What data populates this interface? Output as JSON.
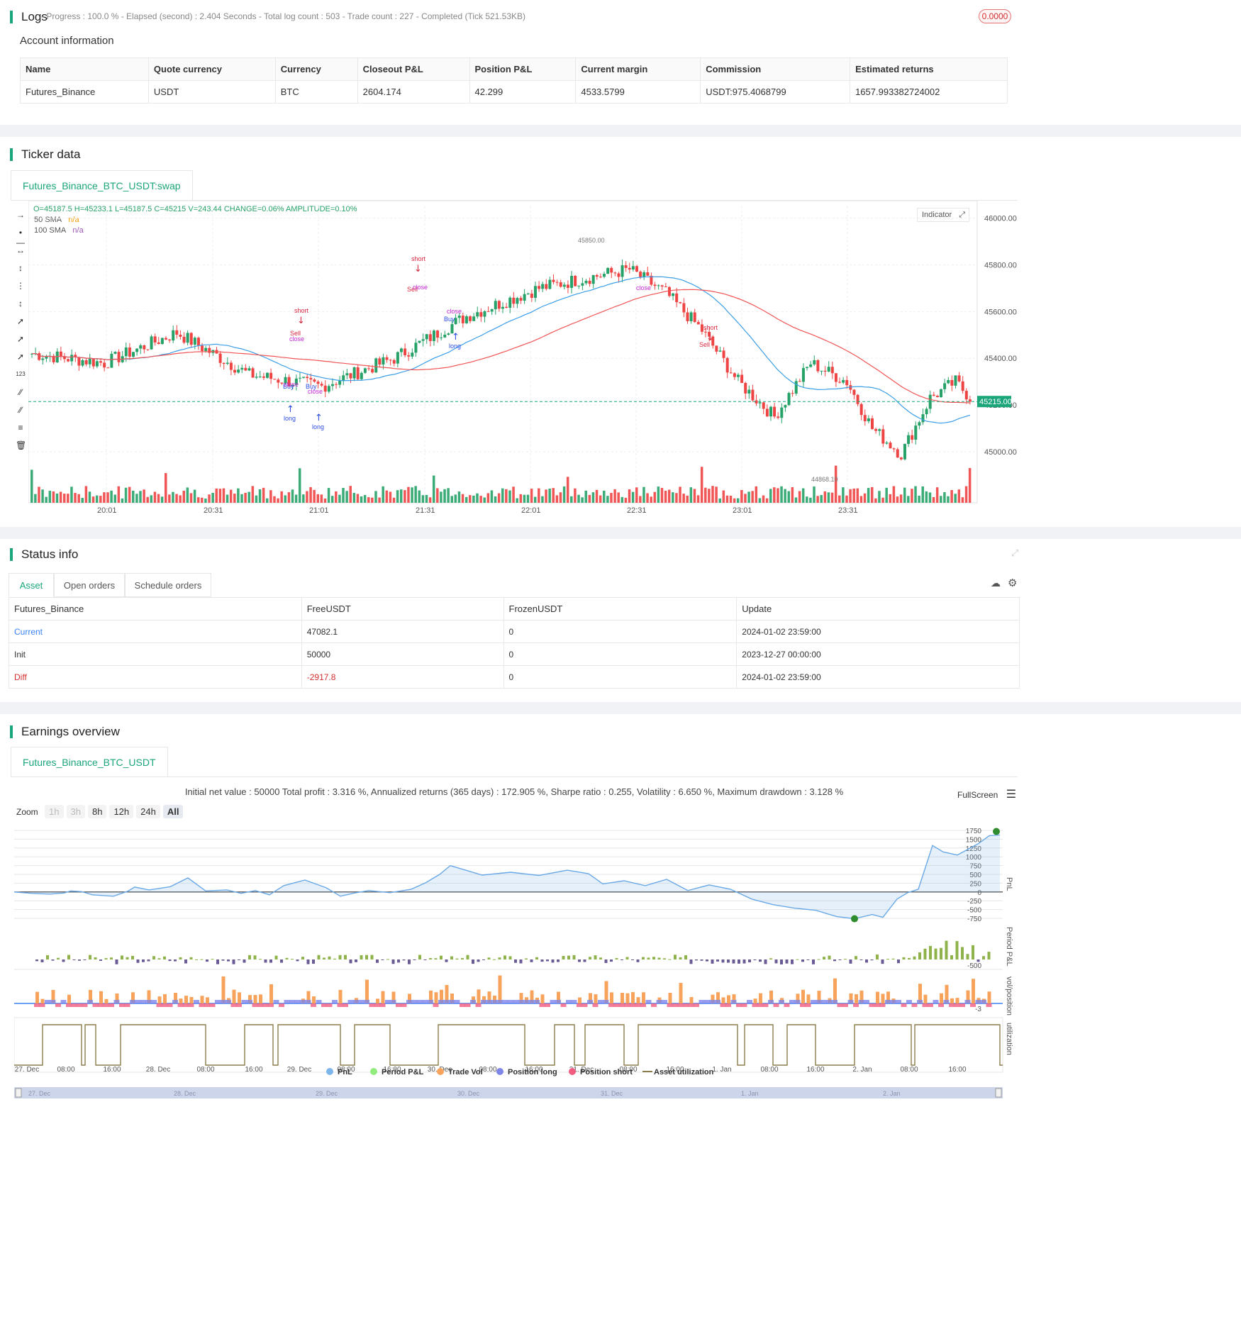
{
  "logs": {
    "title": "Logs",
    "progress_text": "- Progress : 100.0 % - Elapsed (second) : 2.404 Seconds - Total log count : 503 - Trade count : 227 - Completed (Tick 521.53KB)",
    "badge": "0.0000"
  },
  "account": {
    "title": "Account information",
    "headers": [
      "Name",
      "Quote currency",
      "Currency",
      "Closeout P&L",
      "Position P&L",
      "Current margin",
      "Commission",
      "Estimated returns"
    ],
    "row": [
      "Futures_Binance",
      "USDT",
      "BTC",
      "2604.174",
      "42.299",
      "4533.5799",
      "USDT:975.4068799",
      "1657.993382724002"
    ]
  },
  "ticker": {
    "title": "Ticker data",
    "tab": "Futures_Binance_BTC_USDT:swap",
    "ohlc_line": "O=45187.5 H=45233.1 L=45187.5 C=45215 V=243.44 CHANGE=0.06% AMPLITUDE=0.10%",
    "sma50_label": "50 SMA",
    "sma50_val": "n/a",
    "sma100_label": "100 SMA",
    "sma100_val": "n/a",
    "indicator_btn": "Indicator",
    "price_ticks": [
      "46000.00",
      "45800.00",
      "45600.00",
      "45400.00",
      "45200.00",
      "45000.00"
    ],
    "time_ticks": [
      "20:01",
      "20:31",
      "21:01",
      "21:31",
      "22:01",
      "22:31",
      "23:01",
      "23:31"
    ],
    "current_price": "45215.00",
    "high_label": "45850.00",
    "low_label": "44868.10",
    "colors": {
      "up": "#26a269",
      "down": "#ef4444",
      "sma50": "#3b9ee6",
      "sma100": "#f05454",
      "buy": "#2b4de0",
      "sell": "#d7263d",
      "close": "#c026d3"
    },
    "annotations": {
      "short": "short",
      "long": "long",
      "buy": "Buy",
      "sell": "Sell",
      "close": "close"
    }
  },
  "status": {
    "title": "Status info",
    "tabs": [
      "Asset",
      "Open orders",
      "Schedule orders"
    ],
    "headers": [
      "Futures_Binance",
      "FreeUSDT",
      "FrozenUSDT",
      "Update"
    ],
    "rows": [
      [
        "Current",
        "47082.1",
        "0",
        "2024-01-02 23:59:00"
      ],
      [
        "Init",
        "50000",
        "0",
        "2023-12-27 00:00:00"
      ],
      [
        "Diff",
        "-2917.8",
        "0",
        "2024-01-02 23:59:00"
      ]
    ]
  },
  "earnings": {
    "title": "Earnings overview",
    "tab": "Futures_Binance_BTC_USDT",
    "summary": "Initial net value : 50000 Total profit : 3.316 %, Annualized returns (365 days) : 172.905 %, Sharpe ratio : 0.255, Volatility : 6.650 %, Maximum drawdown : 3.128 %",
    "fullscreen": "FullScreen",
    "zoom_label": "Zoom",
    "zoom_buttons": [
      "1h",
      "3h",
      "8h",
      "12h",
      "24h",
      "All"
    ],
    "pnl_ticks": [
      "1750",
      "1500",
      "1250",
      "1000",
      "750",
      "500",
      "250",
      "0",
      "-250",
      "-500",
      "-750"
    ],
    "axis_names": [
      "PnL",
      "Period P&L",
      "vol/position",
      "utilization"
    ],
    "period_tick": "-500",
    "vol_tick": "-3",
    "x_ticks": [
      "27. Dec",
      "08:00",
      "16:00",
      "28. Dec",
      "08:00",
      "16:00",
      "29. Dec",
      "08:00",
      "16:00",
      "30. Dec",
      "08:00",
      "16:00",
      "31. Dec",
      "08:00",
      "16:00",
      "1. Jan",
      "08:00",
      "16:00",
      "2. Jan",
      "08:00",
      "16:00"
    ],
    "nav_ticks": [
      "27. Dec",
      "28. Dec",
      "29. Dec",
      "30. Dec",
      "31. Dec",
      "1. Jan",
      "2. Jan"
    ],
    "legend": [
      {
        "label": "PnL",
        "color": "#7cb5ec"
      },
      {
        "label": "Period P&L",
        "color": "#90ed7d"
      },
      {
        "label": "Trade Vol",
        "color": "#f7a35c"
      },
      {
        "label": "Position long",
        "color": "#8085e9"
      },
      {
        "label": "Position short",
        "color": "#f15c80"
      },
      {
        "label": "Asset utilization",
        "color": "#8b7d4b"
      }
    ]
  }
}
